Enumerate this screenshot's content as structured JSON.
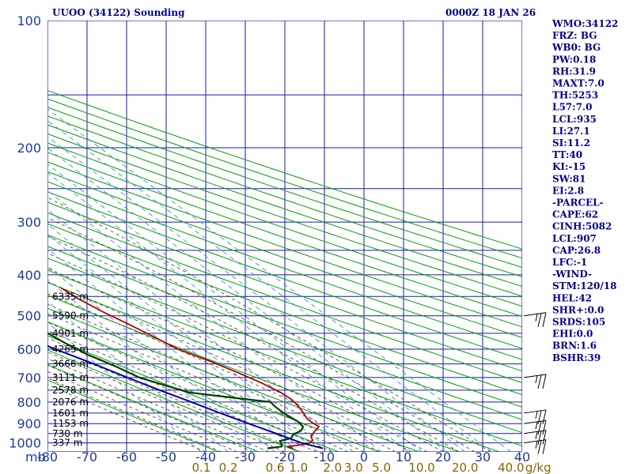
{
  "header": {
    "title": "UUOO (34122) Sounding",
    "datetime": "0000Z 18 JAN 26"
  },
  "indices": [
    "WMO:34122",
    "FRZ: BG",
    "WB0: BG",
    "PW:0.18",
    "RH:31.9",
    "MAXT:7.0",
    "TH:5253",
    "L57:7.0",
    "LCL:935",
    "LI:27.1",
    "SI:11.2",
    "TT:40",
    "KI:-15",
    "SW:81",
    "EI:2.8",
    "-PARCEL-",
    "CAPE:62",
    "CINH:5082",
    "LCL:907",
    "CAP:26.8",
    "LFC:-1",
    "-WIND-",
    "STM:120/18",
    "HEL:42",
    "SHR+:0.0",
    "SRDS:105",
    "EHI:0.0",
    "BRN:1.6",
    "BSHR:39"
  ],
  "colors": {
    "grid": "#1a1ab4",
    "dry_adiabat": "#00a000",
    "moist_adiabat": "#404000",
    "mixing_ratio": "#3a8fd8",
    "temperature": "#b00000",
    "dewpoint": "#004000",
    "parcel": "#0000a0",
    "text": "#00008b",
    "mixing_label": "#806600"
  },
  "chart_data": {
    "type": "line",
    "title": "UUOO (34122) Sounding",
    "x_axis": {
      "unit_label": "mb",
      "ticks": [
        -80,
        -70,
        -60,
        -50,
        -40,
        -30,
        -20,
        -10,
        0,
        10,
        20,
        30,
        40
      ],
      "tick_labels": [
        "-80",
        "-70",
        "-60",
        "-50",
        "-40",
        "-30",
        "-20",
        "-10",
        "0",
        "10",
        "20",
        "30",
        "40"
      ],
      "range": [
        -80,
        40
      ]
    },
    "y_axis": {
      "scale": "log",
      "ticks": [
        100,
        200,
        300,
        400,
        500,
        600,
        700,
        800,
        900,
        1000
      ],
      "tick_labels": [
        "100",
        "200",
        "300",
        "400",
        "500",
        "600",
        "700",
        "800",
        "900",
        "1000"
      ],
      "range": [
        100,
        1050
      ]
    },
    "height_labels": [
      {
        "p": 450,
        "text": "6335 m"
      },
      {
        "p": 500,
        "text": "5590 m"
      },
      {
        "p": 550,
        "text": "4901 m"
      },
      {
        "p": 600,
        "text": "4265 m"
      },
      {
        "p": 650,
        "text": "3666 m"
      },
      {
        "p": 700,
        "text": "3111 m"
      },
      {
        "p": 750,
        "text": "2578 m"
      },
      {
        "p": 800,
        "text": "2076 m"
      },
      {
        "p": 850,
        "text": "1601 m"
      },
      {
        "p": 900,
        "text": "1153 m"
      },
      {
        "p": 950,
        "text": "730 m"
      },
      {
        "p": 1000,
        "text": "337 m"
      }
    ],
    "mixing_ratio_labels": [
      {
        "w": 0.1,
        "text": "0.1"
      },
      {
        "w": 0.2,
        "text": "0.2"
      },
      {
        "w": 0.6,
        "text": "0.6"
      },
      {
        "w": 1.0,
        "text": "1.0"
      },
      {
        "w": 2.0,
        "text": "2.0"
      },
      {
        "w": 3.0,
        "text": "3.0"
      },
      {
        "w": 5.0,
        "text": "5.0"
      },
      {
        "w": 10.0,
        "text": "10.0"
      },
      {
        "w": 20.0,
        "text": "20.0"
      },
      {
        "w": 40.0,
        "text": "40.0"
      }
    ],
    "mixing_unit": "g/kg",
    "series": [
      {
        "key": "temperature",
        "points": [
          [
            1030,
            -17.0
          ],
          [
            1020,
            -18.0
          ],
          [
            1010,
            -14.0
          ],
          [
            1000,
            -11.5
          ],
          [
            985,
            -10.0
          ],
          [
            965,
            -9.5
          ],
          [
            930,
            -6.5
          ],
          [
            915,
            -5.0
          ],
          [
            900,
            -5.5
          ],
          [
            880,
            -6.0
          ],
          [
            850,
            -5.5
          ],
          [
            820,
            -5.0
          ],
          [
            790,
            -5.0
          ],
          [
            760,
            -6.0
          ],
          [
            720,
            -8.5
          ],
          [
            680,
            -12.0
          ],
          [
            640,
            -16.0
          ],
          [
            600,
            -21.0
          ],
          [
            560,
            -24.0
          ],
          [
            520,
            -27.5
          ],
          [
            490,
            -30.5
          ],
          [
            455,
            -33.5
          ],
          [
            430,
            -35.0
          ]
        ]
      },
      {
        "key": "dewpoint",
        "points": [
          [
            1030,
            -23.5
          ],
          [
            1020,
            -19.5
          ],
          [
            1010,
            -19.0
          ],
          [
            990,
            -18.5
          ],
          [
            975,
            -15.0
          ],
          [
            955,
            -13.5
          ],
          [
            935,
            -10.5
          ],
          [
            915,
            -9.0
          ],
          [
            890,
            -9.0
          ],
          [
            850,
            -10.5
          ],
          [
            820,
            -11.0
          ],
          [
            800,
            -11.0
          ],
          [
            780,
            -20.0
          ],
          [
            760,
            -29.0
          ],
          [
            740,
            -32.0
          ],
          [
            700,
            -38.0
          ],
          [
            660,
            -41.0
          ],
          [
            620,
            -45.0
          ],
          [
            580,
            -48.0
          ],
          [
            540,
            -50.5
          ],
          [
            500,
            -52.0
          ],
          [
            470,
            -53.0
          ],
          [
            430,
            -54.0
          ]
        ]
      },
      {
        "key": "parcel",
        "points": [
          [
            1030,
            -9.5
          ],
          [
            1000,
            -13.5
          ],
          [
            950,
            -17.5
          ],
          [
            900,
            -22.0
          ],
          [
            850,
            -26.5
          ],
          [
            800,
            -31.0
          ],
          [
            750,
            -36.0
          ],
          [
            700,
            -41.0
          ],
          [
            650,
            -46.0
          ],
          [
            600,
            -52.0
          ],
          [
            550,
            -58.0
          ],
          [
            500,
            -64.5
          ],
          [
            450,
            -72.0
          ],
          [
            400,
            -80.0
          ],
          [
            350,
            -89.0
          ],
          [
            335,
            -93.0
          ]
        ]
      }
    ],
    "wind_barbs": [
      {
        "p": 500
      },
      {
        "p": 700
      },
      {
        "p": 850
      },
      {
        "p": 900
      },
      {
        "p": 950
      },
      {
        "p": 1000
      }
    ]
  }
}
